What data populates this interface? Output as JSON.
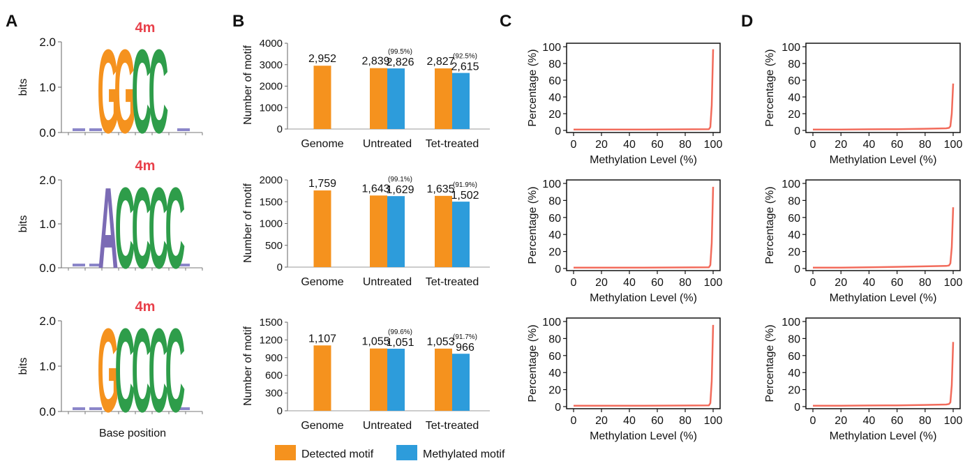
{
  "panels": {
    "A": "A",
    "B": "B",
    "C": "C",
    "D": "D"
  },
  "colors": {
    "detected": "#F5921E",
    "methylated": "#2D9CDB",
    "line": "#F26B5B",
    "G": "#F5921E",
    "C": "#2E9D4A",
    "A": "#7B6BB5",
    "T": "#7B6BB5",
    "mark": "#E8404A"
  },
  "logos": {
    "ylabel": "bits",
    "xlabel": "Base position",
    "yticks": [
      "0.0",
      "1.0",
      "2.0"
    ],
    "items": [
      {
        "mark": "4m",
        "letters": [
          "G",
          "G",
          "C",
          "C"
        ]
      },
      {
        "mark": "4m",
        "letters": [
          "A",
          "C",
          "C",
          "C",
          "C"
        ]
      },
      {
        "mark": "4m",
        "letters": [
          "G",
          "C",
          "C",
          "C",
          "C"
        ]
      }
    ]
  },
  "chart_data": [
    {
      "type": "bar",
      "ylabel": "Number of motif",
      "categories": [
        "Genome",
        "Untreated",
        "Tet-treated"
      ],
      "ylim": [
        0,
        4000
      ],
      "yticks": [
        0,
        1000,
        2000,
        3000,
        4000
      ],
      "series": [
        {
          "name": "Detected motif",
          "values": [
            2952,
            2839,
            2827
          ],
          "labels": [
            "2,952",
            "2,839",
            "2,827"
          ]
        },
        {
          "name": "Methylated motif",
          "values": [
            null,
            2826,
            2615
          ],
          "labels": [
            "",
            "2,826",
            "2,615"
          ],
          "pct": [
            "",
            "(99.5%)",
            "(92.5%)"
          ]
        }
      ]
    },
    {
      "type": "bar",
      "ylabel": "Number of motif",
      "categories": [
        "Genome",
        "Untreated",
        "Tet-treated"
      ],
      "ylim": [
        0,
        2000
      ],
      "yticks": [
        0,
        500,
        1000,
        1500,
        2000
      ],
      "series": [
        {
          "name": "Detected motif",
          "values": [
            1759,
            1643,
            1635
          ],
          "labels": [
            "1,759",
            "1,643",
            "1,635"
          ]
        },
        {
          "name": "Methylated motif",
          "values": [
            null,
            1629,
            1502
          ],
          "labels": [
            "",
            "1,629",
            "1,502"
          ],
          "pct": [
            "",
            "(99.1%)",
            "(91.9%)"
          ]
        }
      ]
    },
    {
      "type": "bar",
      "ylabel": "Number of motif",
      "categories": [
        "Genome",
        "Untreated",
        "Tet-treated"
      ],
      "ylim": [
        0,
        1500
      ],
      "yticks": [
        0,
        300,
        600,
        900,
        1200,
        1500
      ],
      "series": [
        {
          "name": "Detected motif",
          "values": [
            1107,
            1055,
            1053
          ],
          "labels": [
            "1,107",
            "1,055",
            "1,053"
          ]
        },
        {
          "name": "Methylated motif",
          "values": [
            null,
            1051,
            966
          ],
          "labels": [
            "",
            "1,051",
            "966"
          ],
          "pct": [
            "",
            "(99.6%)",
            "(91.7%)"
          ]
        }
      ]
    },
    {
      "type": "line",
      "panel": "C",
      "xlabel": "Methylation Level (%)",
      "ylabel": "Percentage (%)",
      "xlim": [
        0,
        100
      ],
      "ylim": [
        0,
        100
      ],
      "xticks": [
        0,
        20,
        40,
        60,
        80,
        100
      ],
      "yticks": [
        0,
        20,
        40,
        60,
        80,
        100
      ],
      "x": [
        0,
        50,
        97,
        98,
        99,
        100
      ],
      "y": [
        1,
        1,
        1.5,
        4,
        30,
        97
      ]
    },
    {
      "type": "line",
      "panel": "C",
      "xlabel": "Methylation Level (%)",
      "ylabel": "Percentage (%)",
      "xlim": [
        0,
        100
      ],
      "ylim": [
        0,
        100
      ],
      "xticks": [
        0,
        20,
        40,
        60,
        80,
        100
      ],
      "yticks": [
        0,
        20,
        40,
        60,
        80,
        100
      ],
      "x": [
        0,
        50,
        97,
        98,
        99,
        100
      ],
      "y": [
        1,
        1,
        1.5,
        4,
        30,
        96
      ]
    },
    {
      "type": "line",
      "panel": "C",
      "xlabel": "Methylation Level (%)",
      "ylabel": "Percentage (%)",
      "xlim": [
        0,
        100
      ],
      "ylim": [
        0,
        100
      ],
      "xticks": [
        0,
        20,
        40,
        60,
        80,
        100
      ],
      "yticks": [
        0,
        20,
        40,
        60,
        80,
        100
      ],
      "x": [
        0,
        50,
        97,
        98,
        99,
        100
      ],
      "y": [
        1,
        1,
        1.5,
        4,
        30,
        96
      ]
    },
    {
      "type": "line",
      "panel": "D",
      "xlabel": "Methylation Level (%)",
      "ylabel": "Percentage (%)",
      "xlim": [
        0,
        100
      ],
      "ylim": [
        0,
        100
      ],
      "xticks": [
        0,
        20,
        40,
        60,
        80,
        100
      ],
      "yticks": [
        0,
        20,
        40,
        60,
        80,
        100
      ],
      "x": [
        0,
        20,
        40,
        60,
        80,
        95,
        97,
        98,
        99,
        100
      ],
      "y": [
        1,
        1,
        1.3,
        1.5,
        2,
        2.5,
        3,
        5,
        20,
        56
      ]
    },
    {
      "type": "line",
      "panel": "D",
      "xlabel": "Methylation Level (%)",
      "ylabel": "Percentage (%)",
      "xlim": [
        0,
        100
      ],
      "ylim": [
        0,
        100
      ],
      "xticks": [
        0,
        20,
        40,
        60,
        80,
        100
      ],
      "yticks": [
        0,
        20,
        40,
        60,
        80,
        100
      ],
      "x": [
        0,
        20,
        40,
        60,
        80,
        95,
        97,
        98,
        99,
        100
      ],
      "y": [
        1,
        1,
        1.5,
        2,
        2.5,
        3,
        3.5,
        6,
        25,
        72
      ]
    },
    {
      "type": "line",
      "panel": "D",
      "xlabel": "Methylation Level (%)",
      "ylabel": "Percentage (%)",
      "xlim": [
        0,
        100
      ],
      "ylim": [
        0,
        100
      ],
      "xticks": [
        0,
        20,
        40,
        60,
        80,
        100
      ],
      "yticks": [
        0,
        20,
        40,
        60,
        80,
        100
      ],
      "x": [
        0,
        20,
        40,
        60,
        80,
        95,
        97,
        98,
        99,
        100
      ],
      "y": [
        1,
        1,
        1.3,
        1.5,
        2,
        2.5,
        3,
        5,
        25,
        76
      ]
    }
  ],
  "legend": {
    "detected": "Detected motif",
    "methylated": "Methylated motif"
  }
}
